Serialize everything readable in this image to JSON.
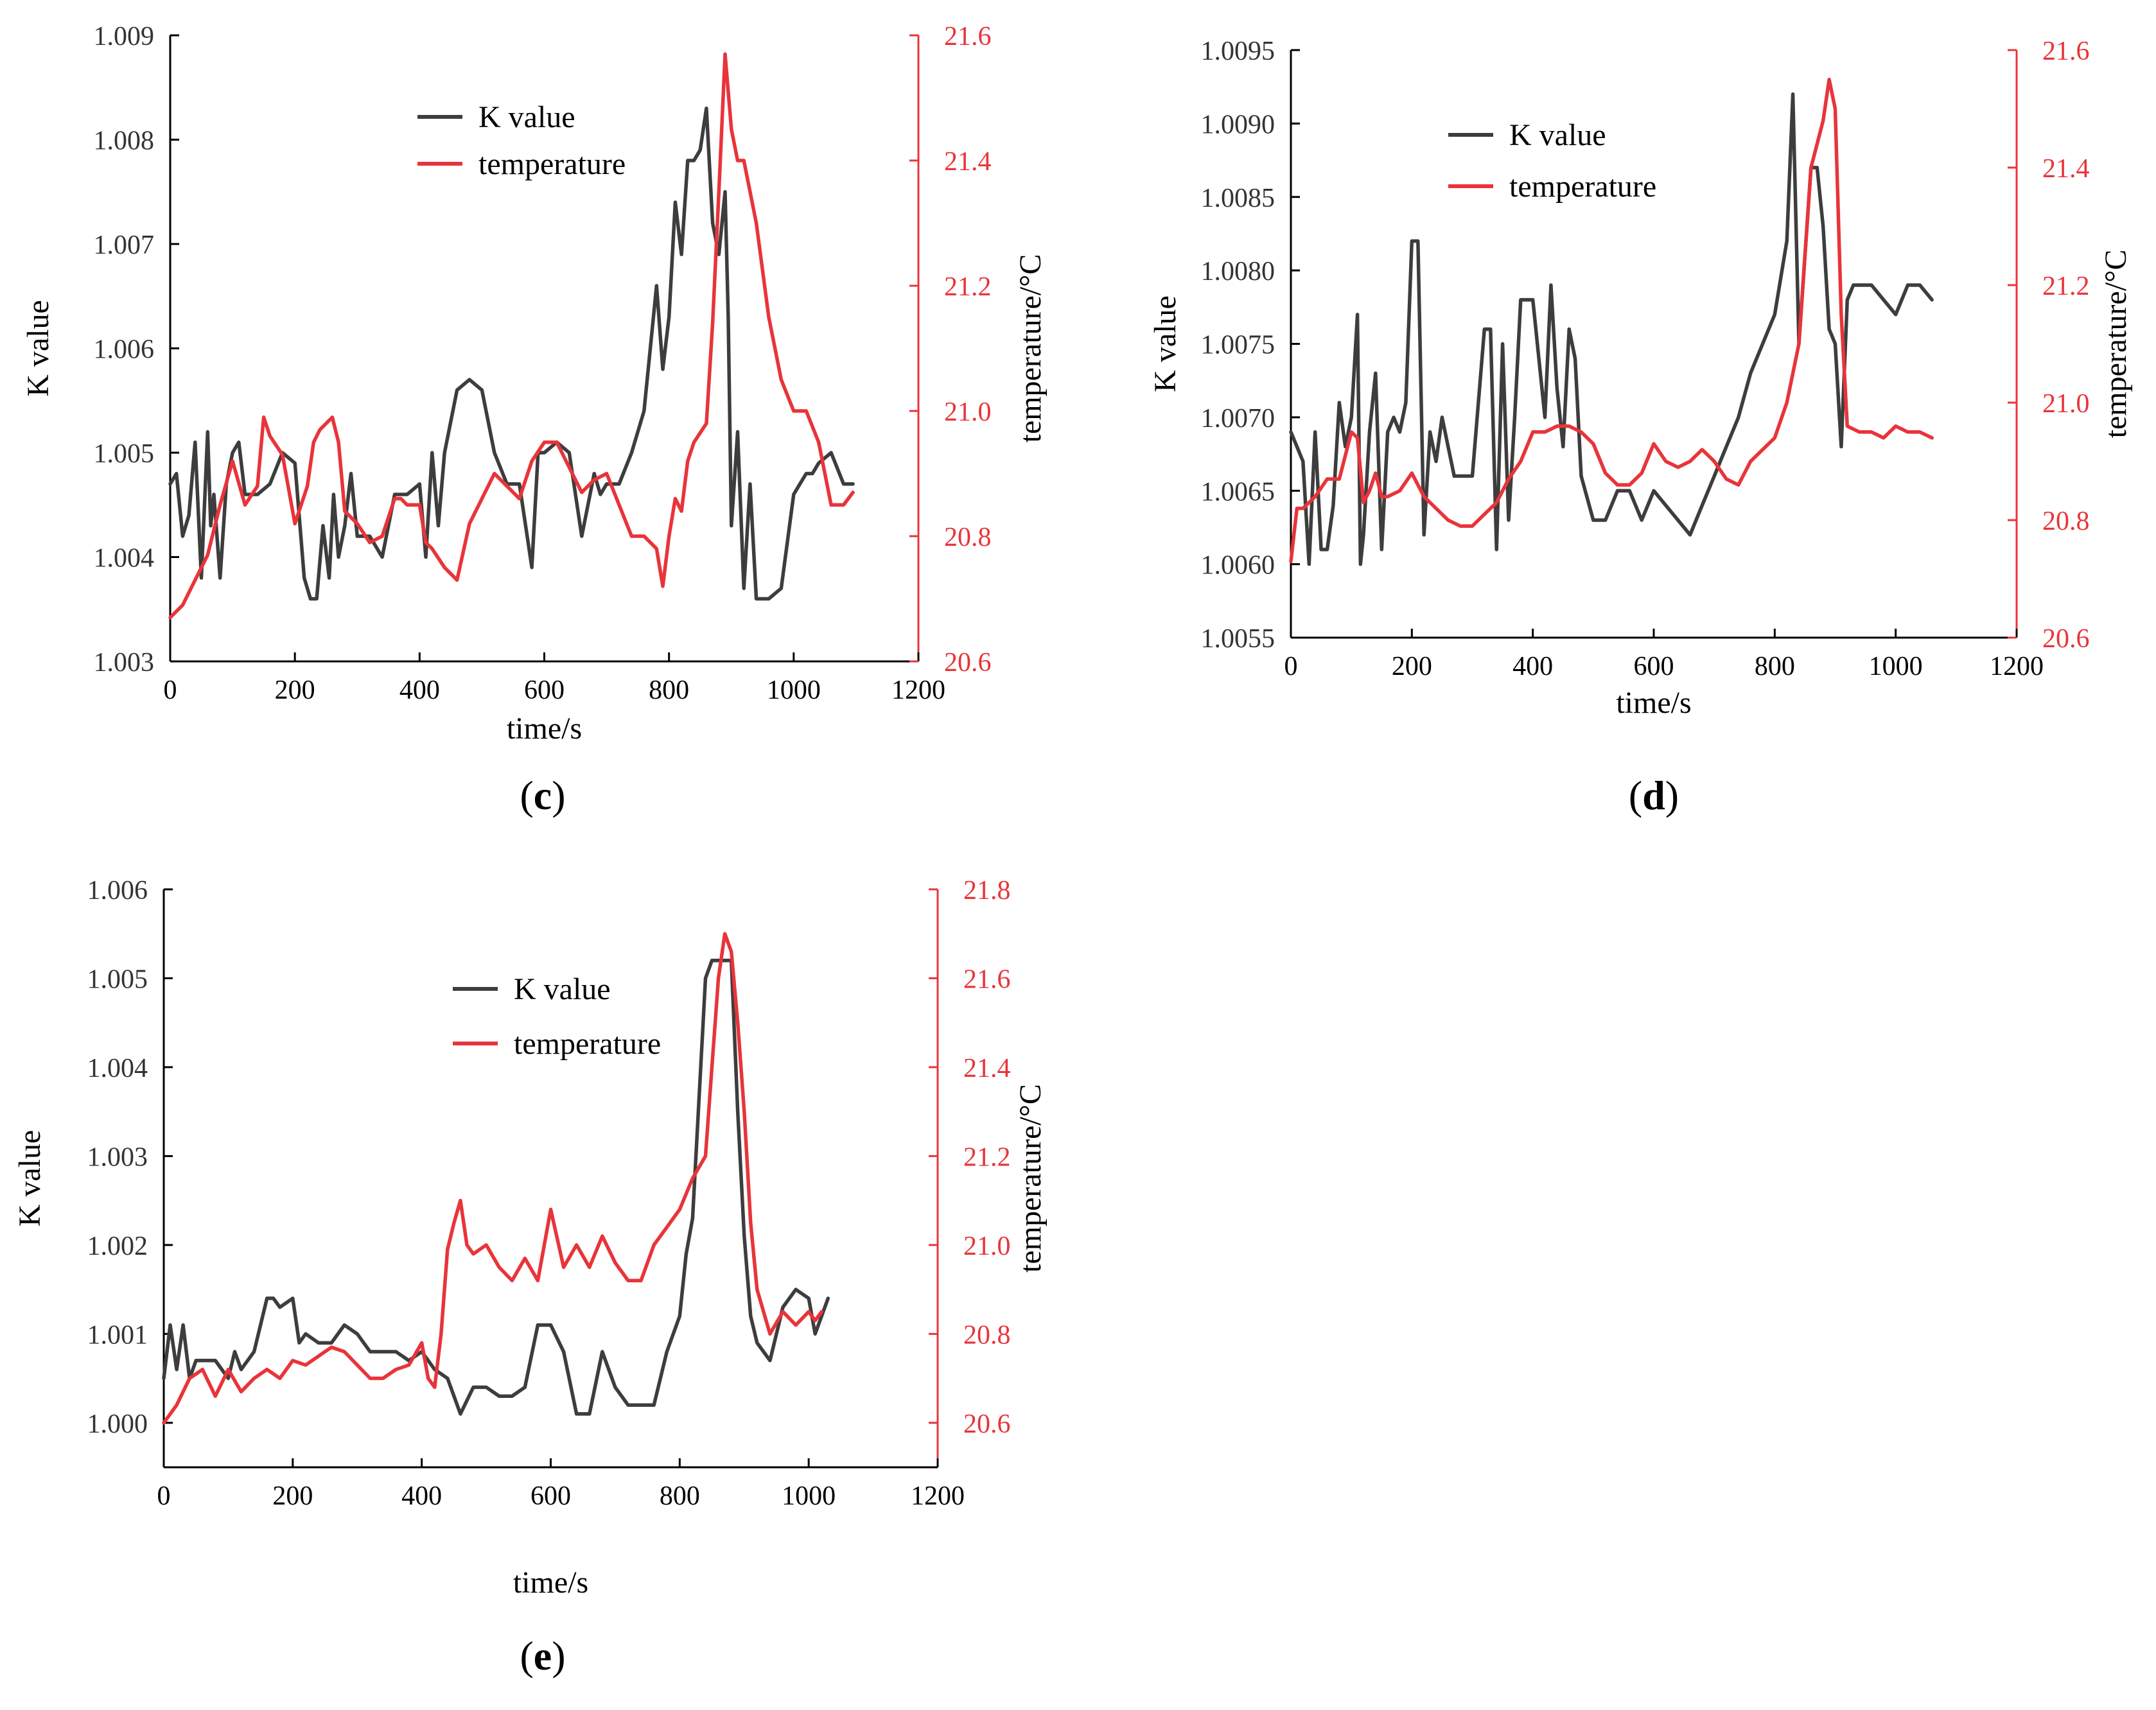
{
  "colors": {
    "k_series": "#3d3d3d",
    "temp_series": "#e8343a",
    "axis": "#000000",
    "right_axis": "#e8343a"
  },
  "chart_data": [
    {
      "type": "line",
      "panel_id": "c",
      "caption_label": "c",
      "xlabel": "time/s",
      "ylabel": "K value",
      "y2label": "temperature/°C",
      "xlim": [
        0,
        1200
      ],
      "xticks": [
        "0",
        "200",
        "400",
        "600",
        "800",
        "1000",
        "1200"
      ],
      "ylim": [
        1.003,
        1.009
      ],
      "yticks": [
        "1.003",
        "1.004",
        "1.005",
        "1.006",
        "1.007",
        "1.008",
        "1.009"
      ],
      "y2lim": [
        20.6,
        21.6
      ],
      "y2ticks": [
        "20.6",
        "20.8",
        "21.0",
        "21.2",
        "21.4",
        "21.6"
      ],
      "legend": [
        "K value",
        "temperature"
      ],
      "series": [
        {
          "name": "K value",
          "axis": "left",
          "x": [
            0,
            10,
            20,
            30,
            40,
            50,
            60,
            65,
            70,
            80,
            90,
            100,
            110,
            120,
            140,
            160,
            180,
            200,
            215,
            225,
            235,
            245,
            255,
            262,
            270,
            280,
            290,
            300,
            320,
            340,
            360,
            380,
            400,
            410,
            420,
            430,
            440,
            460,
            480,
            500,
            520,
            540,
            560,
            580,
            590,
            600,
            620,
            640,
            660,
            680,
            690,
            700,
            720,
            740,
            760,
            780,
            790,
            800,
            810,
            820,
            830,
            840,
            850,
            860,
            870,
            880,
            890,
            895,
            900,
            910,
            920,
            930,
            940,
            950,
            960,
            980,
            1000,
            1010,
            1020,
            1030,
            1040,
            1060,
            1080,
            1095
          ],
          "values": [
            1.0047,
            1.0048,
            1.0042,
            1.0044,
            1.0051,
            1.0038,
            1.0052,
            1.0043,
            1.0046,
            1.0038,
            1.0047,
            1.005,
            1.0051,
            1.0046,
            1.0046,
            1.0047,
            1.005,
            1.0049,
            1.0038,
            1.0036,
            1.0036,
            1.0043,
            1.0038,
            1.0046,
            1.004,
            1.0043,
            1.0048,
            1.0042,
            1.0042,
            1.004,
            1.0046,
            1.0046,
            1.0047,
            1.004,
            1.005,
            1.0043,
            1.005,
            1.0056,
            1.0057,
            1.0056,
            1.005,
            1.0047,
            1.0047,
            1.0039,
            1.005,
            1.005,
            1.0051,
            1.005,
            1.0042,
            1.0048,
            1.0046,
            1.0047,
            1.0047,
            1.005,
            1.0054,
            1.0066,
            1.0058,
            1.0063,
            1.0074,
            1.0069,
            1.0078,
            1.0078,
            1.0079,
            1.0083,
            1.0072,
            1.0069,
            1.0075,
            1.0063,
            1.0043,
            1.0052,
            1.0037,
            1.0047,
            1.0036,
            1.0036,
            1.0036,
            1.0037,
            1.0046,
            1.0047,
            1.0048,
            1.0048,
            1.0049,
            1.005,
            1.0047,
            1.0047
          ]
        },
        {
          "name": "temperature",
          "axis": "right",
          "x": [
            0,
            20,
            40,
            60,
            80,
            100,
            120,
            140,
            150,
            160,
            180,
            200,
            220,
            230,
            240,
            260,
            270,
            280,
            300,
            320,
            340,
            360,
            370,
            380,
            400,
            410,
            420,
            440,
            460,
            480,
            500,
            520,
            540,
            560,
            580,
            600,
            620,
            640,
            660,
            680,
            700,
            720,
            740,
            760,
            780,
            790,
            800,
            810,
            820,
            830,
            840,
            860,
            870,
            880,
            890,
            900,
            910,
            920,
            940,
            960,
            980,
            1000,
            1020,
            1040,
            1060,
            1080,
            1095
          ],
          "values": [
            20.67,
            20.69,
            20.73,
            20.77,
            20.85,
            20.92,
            20.85,
            20.88,
            20.99,
            20.96,
            20.93,
            20.82,
            20.88,
            20.95,
            20.97,
            20.99,
            20.95,
            20.84,
            20.82,
            20.79,
            20.8,
            20.86,
            20.86,
            20.85,
            20.85,
            20.79,
            20.78,
            20.75,
            20.73,
            20.82,
            20.86,
            20.9,
            20.88,
            20.86,
            20.92,
            20.95,
            20.95,
            20.91,
            20.87,
            20.89,
            20.9,
            20.85,
            20.8,
            20.8,
            20.78,
            20.72,
            20.8,
            20.86,
            20.84,
            20.92,
            20.95,
            20.98,
            21.14,
            21.35,
            21.57,
            21.45,
            21.4,
            21.4,
            21.3,
            21.15,
            21.05,
            21.0,
            21.0,
            20.95,
            20.85,
            20.85,
            20.87
          ]
        }
      ]
    },
    {
      "type": "line",
      "panel_id": "d",
      "caption_label": "d",
      "xlabel": "time/s",
      "ylabel": "K value",
      "y2label": "temperature/°C",
      "xlim": [
        0,
        1200
      ],
      "xticks": [
        "0",
        "200",
        "400",
        "600",
        "800",
        "1000",
        "1200"
      ],
      "ylim": [
        1.0055,
        1.0095
      ],
      "yticks": [
        "1.0055",
        "1.0060",
        "1.0065",
        "1.0070",
        "1.0075",
        "1.0080",
        "1.0085",
        "1.0090",
        "1.0095"
      ],
      "y2lim": [
        20.6,
        21.6
      ],
      "y2ticks": [
        "20.6",
        "20.8",
        "21.0",
        "21.2",
        "21.4",
        "21.6"
      ],
      "legend": [
        "K value",
        "temperature"
      ],
      "series": [
        {
          "name": "K value",
          "axis": "left",
          "x": [
            0,
            10,
            20,
            30,
            40,
            50,
            60,
            70,
            80,
            90,
            100,
            110,
            115,
            120,
            130,
            140,
            150,
            160,
            170,
            180,
            190,
            200,
            210,
            220,
            230,
            240,
            250,
            260,
            270,
            280,
            300,
            320,
            330,
            340,
            350,
            360,
            370,
            380,
            390,
            400,
            420,
            430,
            440,
            450,
            460,
            470,
            480,
            500,
            520,
            540,
            560,
            580,
            600,
            620,
            640,
            660,
            680,
            700,
            720,
            740,
            760,
            780,
            800,
            820,
            830,
            840,
            850,
            860,
            870,
            880,
            890,
            900,
            910,
            920,
            930,
            940,
            960,
            980,
            1000,
            1020,
            1040,
            1060
          ],
          "values": [
            1.0069,
            1.0068,
            1.0067,
            1.006,
            1.0069,
            1.0061,
            1.0061,
            1.0064,
            1.0071,
            1.0068,
            1.007,
            1.0077,
            1.006,
            1.0062,
            1.0069,
            1.0073,
            1.0061,
            1.0069,
            1.007,
            1.0069,
            1.0071,
            1.0082,
            1.0082,
            1.0062,
            1.0069,
            1.0067,
            1.007,
            1.0068,
            1.0066,
            1.0066,
            1.0066,
            1.0076,
            1.0076,
            1.0061,
            1.0075,
            1.0063,
            1.007,
            1.0078,
            1.0078,
            1.0078,
            1.007,
            1.0079,
            1.0072,
            1.0068,
            1.0076,
            1.0074,
            1.0066,
            1.0063,
            1.0063,
            1.0065,
            1.0065,
            1.0063,
            1.0065,
            1.0064,
            1.0063,
            1.0062,
            1.0064,
            1.0066,
            1.0068,
            1.007,
            1.0073,
            1.0075,
            1.0077,
            1.0082,
            1.0092,
            1.0075,
            1.0081,
            1.0087,
            1.0087,
            1.0083,
            1.0076,
            1.0075,
            1.0068,
            1.0078,
            1.0079,
            1.0079,
            1.0079,
            1.0078,
            1.0077,
            1.0079,
            1.0079,
            1.0078
          ]
        },
        {
          "name": "temperature",
          "axis": "right",
          "x": [
            0,
            10,
            20,
            30,
            40,
            60,
            80,
            100,
            110,
            120,
            130,
            140,
            150,
            160,
            180,
            200,
            210,
            220,
            240,
            260,
            280,
            300,
            320,
            340,
            360,
            380,
            400,
            420,
            440,
            460,
            480,
            500,
            520,
            540,
            560,
            580,
            600,
            620,
            640,
            660,
            680,
            700,
            720,
            740,
            760,
            780,
            800,
            820,
            830,
            840,
            860,
            880,
            890,
            900,
            910,
            920,
            940,
            960,
            980,
            1000,
            1020,
            1040,
            1060
          ],
          "values": [
            20.73,
            20.82,
            20.82,
            20.83,
            20.84,
            20.87,
            20.87,
            20.95,
            20.94,
            20.83,
            20.85,
            20.88,
            20.84,
            20.84,
            20.85,
            20.88,
            20.86,
            20.84,
            20.82,
            20.8,
            20.79,
            20.79,
            20.81,
            20.83,
            20.87,
            20.9,
            20.95,
            20.95,
            20.96,
            20.96,
            20.95,
            20.93,
            20.88,
            20.86,
            20.86,
            20.88,
            20.93,
            20.9,
            20.89,
            20.9,
            20.92,
            20.9,
            20.87,
            20.86,
            20.9,
            20.92,
            20.94,
            21.0,
            21.05,
            21.1,
            21.4,
            21.48,
            21.55,
            21.5,
            21.15,
            20.96,
            20.95,
            20.95,
            20.94,
            20.96,
            20.95,
            20.95,
            20.94
          ]
        }
      ]
    },
    {
      "type": "line",
      "panel_id": "e",
      "caption_label": "e",
      "xlabel": "time/s",
      "ylabel": "K value",
      "y2label": "temperature/°C",
      "xlim": [
        0,
        1200
      ],
      "xticks": [
        "0",
        "200",
        "400",
        "600",
        "800",
        "1000",
        "1200"
      ],
      "ylim": [
        0.9995,
        1.006
      ],
      "yticks": [
        "1.000",
        "1.001",
        "1.002",
        "1.003",
        "1.004",
        "1.005",
        "1.006"
      ],
      "y2lim": [
        20.5,
        21.8
      ],
      "y2ticks": [
        "20.6",
        "20.8",
        "21.0",
        "21.2",
        "21.4",
        "21.6",
        "21.8"
      ],
      "legend": [
        "K value",
        "temperature"
      ],
      "series": [
        {
          "name": "K value",
          "axis": "left",
          "x": [
            0,
            10,
            20,
            30,
            40,
            50,
            60,
            80,
            100,
            110,
            120,
            140,
            160,
            170,
            180,
            200,
            210,
            220,
            240,
            260,
            280,
            300,
            320,
            340,
            360,
            380,
            400,
            410,
            420,
            440,
            460,
            480,
            500,
            520,
            540,
            560,
            580,
            600,
            620,
            640,
            660,
            680,
            700,
            720,
            740,
            760,
            780,
            800,
            810,
            820,
            840,
            850,
            860,
            870,
            880,
            890,
            900,
            910,
            920,
            940,
            960,
            980,
            1000,
            1010,
            1020,
            1030
          ],
          "values": [
            1.0005,
            1.0011,
            1.0006,
            1.0011,
            1.0005,
            1.0007,
            1.0007,
            1.0007,
            1.0005,
            1.0008,
            1.0006,
            1.0008,
            1.0014,
            1.0014,
            1.0013,
            1.0014,
            1.0009,
            1.001,
            1.0009,
            1.0009,
            1.0011,
            1.001,
            1.0008,
            1.0008,
            1.0008,
            1.0007,
            1.0008,
            1.0007,
            1.0006,
            1.0005,
            1.0001,
            1.0004,
            1.0004,
            1.0003,
            1.0003,
            1.0004,
            1.0011,
            1.0011,
            1.0008,
            1.0001,
            1.0001,
            1.0008,
            1.0004,
            1.0002,
            1.0002,
            1.0002,
            1.0008,
            1.0012,
            1.0019,
            1.0023,
            1.005,
            1.0052,
            1.0052,
            1.0052,
            1.0052,
            1.0035,
            1.0021,
            1.0012,
            1.0009,
            1.0007,
            1.0013,
            1.0015,
            1.0014,
            1.001,
            1.0012,
            1.0014
          ]
        },
        {
          "name": "temperature",
          "axis": "right",
          "x": [
            0,
            20,
            40,
            60,
            80,
            100,
            120,
            140,
            160,
            180,
            200,
            220,
            240,
            260,
            280,
            300,
            320,
            340,
            360,
            380,
            400,
            410,
            420,
            430,
            440,
            450,
            460,
            470,
            480,
            500,
            520,
            540,
            560,
            580,
            600,
            620,
            640,
            660,
            680,
            700,
            720,
            740,
            760,
            780,
            800,
            820,
            840,
            850,
            860,
            870,
            880,
            890,
            900,
            910,
            920,
            940,
            960,
            980,
            1000,
            1010,
            1020
          ],
          "values": [
            20.6,
            20.64,
            20.7,
            20.72,
            20.66,
            20.72,
            20.67,
            20.7,
            20.72,
            20.7,
            20.74,
            20.73,
            20.75,
            20.77,
            20.76,
            20.73,
            20.7,
            20.7,
            20.72,
            20.73,
            20.78,
            20.7,
            20.68,
            20.8,
            20.99,
            21.05,
            21.1,
            21.0,
            20.98,
            21.0,
            20.95,
            20.92,
            20.97,
            20.92,
            21.08,
            20.95,
            21.0,
            20.95,
            21.02,
            20.96,
            20.92,
            20.92,
            21.0,
            21.04,
            21.08,
            21.15,
            21.2,
            21.4,
            21.6,
            21.7,
            21.66,
            21.5,
            21.3,
            21.05,
            20.9,
            20.8,
            20.85,
            20.82,
            20.85,
            20.83,
            20.85
          ]
        }
      ]
    }
  ]
}
